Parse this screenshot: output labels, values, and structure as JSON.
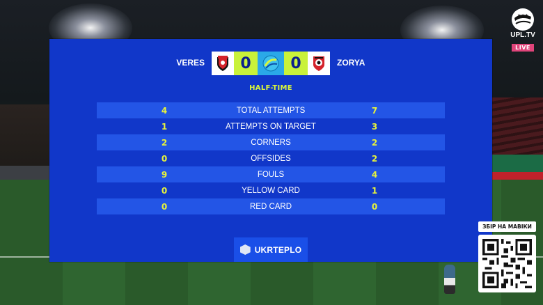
{
  "match": {
    "home_team": "VERES",
    "away_team": "ZORYA",
    "home_score": "0",
    "away_score": "0",
    "period": "HALF-TIME"
  },
  "stats": [
    {
      "home": "4",
      "label": "TOTAL ATTEMPTS",
      "away": "7"
    },
    {
      "home": "1",
      "label": "ATTEMPTS ON TARGET",
      "away": "3"
    },
    {
      "home": "2",
      "label": "CORNERS",
      "away": "2"
    },
    {
      "home": "0",
      "label": "OFFSIDES",
      "away": "2"
    },
    {
      "home": "9",
      "label": "FOULS",
      "away": "4"
    },
    {
      "home": "0",
      "label": "YELLOW CARD",
      "away": "1"
    },
    {
      "home": "0",
      "label": "RED CARD",
      "away": "0"
    }
  ],
  "sponsor": {
    "name": "UKRTEPLO"
  },
  "broadcaster": {
    "name": "UPL.TV",
    "live_label": "LIVE"
  },
  "donation": {
    "title": "ЗБІР НА МАВІКИ"
  },
  "colors": {
    "panel": "#1137c9",
    "row_alt": "#2355e6",
    "accent_yellow": "#e7f33b",
    "score_bg": "#c9f23a",
    "live_badge": "#e0447a"
  },
  "icons": {
    "home_crest": "veres-crest-icon",
    "away_crest": "zorya-crest-icon",
    "league": "upl-ball-icon",
    "sponsor": "ukrteplo-logo-icon",
    "qr": "qr-code-icon"
  }
}
